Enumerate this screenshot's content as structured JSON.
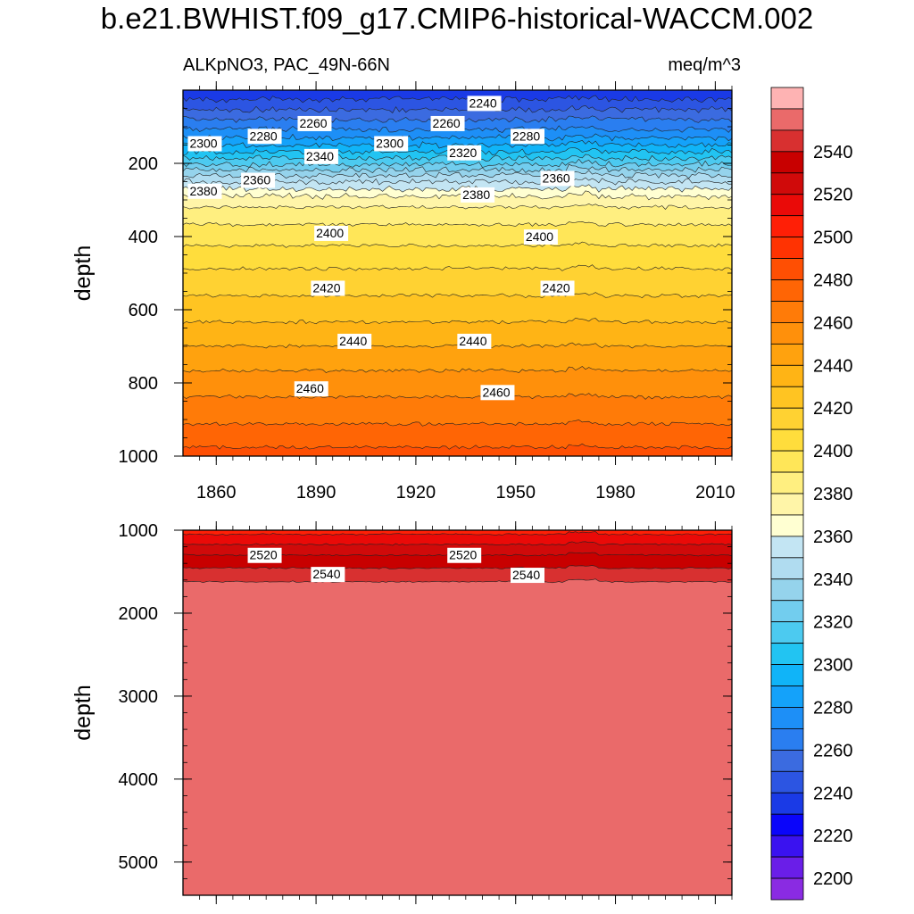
{
  "title": "b.e21.BWHIST.f09_g17.CMIP6-historical-WACCM.002",
  "chart_data": {
    "type": "heatmap",
    "left_subtitle": "ALKpNO3, PAC_49N-66N",
    "right_subtitle": "meq/m^3",
    "ylabel": "depth",
    "x_ticks": [
      1860,
      1890,
      1920,
      1950,
      1980,
      2010
    ],
    "xlim": [
      1850,
      2015
    ],
    "panels": [
      {
        "ylim": [
          0,
          1000
        ],
        "y_ticks": [
          200,
          400,
          600,
          800,
          1000
        ],
        "profile": [
          [
            10,
            2235
          ],
          [
            40,
            2245
          ],
          [
            80,
            2260
          ],
          [
            120,
            2275
          ],
          [
            160,
            2295
          ],
          [
            200,
            2318
          ],
          [
            240,
            2345
          ],
          [
            280,
            2365
          ],
          [
            300,
            2375
          ],
          [
            340,
            2385
          ],
          [
            400,
            2396
          ],
          [
            500,
            2412
          ],
          [
            600,
            2425
          ],
          [
            700,
            2440
          ],
          [
            800,
            2455
          ],
          [
            900,
            2468
          ],
          [
            960,
            2478
          ],
          [
            1000,
            2483
          ]
        ],
        "contour_labels": [
          {
            "text": "2240",
            "year": 1936,
            "depth": 40
          },
          {
            "text": "2260",
            "year": 1885,
            "depth": 95
          },
          {
            "text": "2260",
            "year": 1925,
            "depth": 95
          },
          {
            "text": "2280",
            "year": 1870,
            "depth": 130
          },
          {
            "text": "2280",
            "year": 1949,
            "depth": 130
          },
          {
            "text": "2300",
            "year": 1852,
            "depth": 150
          },
          {
            "text": "2300",
            "year": 1908,
            "depth": 150
          },
          {
            "text": "2320",
            "year": 1930,
            "depth": 175
          },
          {
            "text": "2340",
            "year": 1887,
            "depth": 185
          },
          {
            "text": "2360",
            "year": 1868,
            "depth": 250
          },
          {
            "text": "2360",
            "year": 1958,
            "depth": 245
          },
          {
            "text": "2380",
            "year": 1852,
            "depth": 280
          },
          {
            "text": "2380",
            "year": 1934,
            "depth": 290
          },
          {
            "text": "2400",
            "year": 1890,
            "depth": 395
          },
          {
            "text": "2400",
            "year": 1953,
            "depth": 405
          },
          {
            "text": "2420",
            "year": 1889,
            "depth": 545
          },
          {
            "text": "2420",
            "year": 1958,
            "depth": 545
          },
          {
            "text": "2440",
            "year": 1897,
            "depth": 690
          },
          {
            "text": "2440",
            "year": 1933,
            "depth": 690
          },
          {
            "text": "2460",
            "year": 1884,
            "depth": 820
          },
          {
            "text": "2460",
            "year": 1940,
            "depth": 830
          }
        ]
      },
      {
        "ylim": [
          1000,
          5400
        ],
        "y_ticks": [
          1000,
          2000,
          3000,
          4000,
          5000
        ],
        "profile": [
          [
            1000,
            2505
          ],
          [
            1100,
            2515
          ],
          [
            1200,
            2522
          ],
          [
            1300,
            2530
          ],
          [
            1400,
            2537
          ],
          [
            1550,
            2545
          ],
          [
            1650,
            2552
          ],
          [
            1720,
            2560
          ],
          [
            5400,
            2560
          ]
        ],
        "contour_labels": [
          {
            "text": "2520",
            "year": 1870,
            "depth": 1320
          },
          {
            "text": "2520",
            "year": 1930,
            "depth": 1320
          },
          {
            "text": "2540",
            "year": 1889,
            "depth": 1550
          },
          {
            "text": "2540",
            "year": 1949,
            "depth": 1560
          }
        ]
      }
    ],
    "colorbar": {
      "levels": [
        2200,
        2210,
        2220,
        2230,
        2240,
        2250,
        2260,
        2270,
        2280,
        2290,
        2300,
        2310,
        2320,
        2330,
        2340,
        2350,
        2360,
        2370,
        2380,
        2390,
        2400,
        2410,
        2420,
        2430,
        2440,
        2450,
        2460,
        2470,
        2480,
        2490,
        2500,
        2510,
        2520,
        2530,
        2540,
        2550
      ],
      "colors": [
        "#8a2be2",
        "#6a1ee8",
        "#3a12f0",
        "#0a05fa",
        "#1a3ae6",
        "#2c55e2",
        "#3b6be0",
        "#2a7ef0",
        "#1d8ff7",
        "#14a2fa",
        "#10b4f8",
        "#22c4f2",
        "#4ccaf0",
        "#72cdee",
        "#95d3ec",
        "#b0dcf0",
        "#c3e5f3",
        "#ffffd2",
        "#fff5a8",
        "#ffef80",
        "#ffe658",
        "#ffdd3c",
        "#ffd232",
        "#ffc422",
        "#ffb415",
        "#ffa20e",
        "#ff900b",
        "#ff7b08",
        "#ff6505",
        "#ff4f03",
        "#ff3302",
        "#ff1f06",
        "#ea0a08",
        "#d00a0a",
        "#c80000",
        "#d83030",
        "#ea6a6a",
        "#feb3b3"
      ],
      "tick_labels": [
        "2200",
        "2220",
        "2240",
        "2260",
        "2280",
        "2300",
        "2320",
        "2340",
        "2360",
        "2380",
        "2400",
        "2420",
        "2440",
        "2460",
        "2480",
        "2500",
        "2520",
        "2540"
      ]
    }
  }
}
